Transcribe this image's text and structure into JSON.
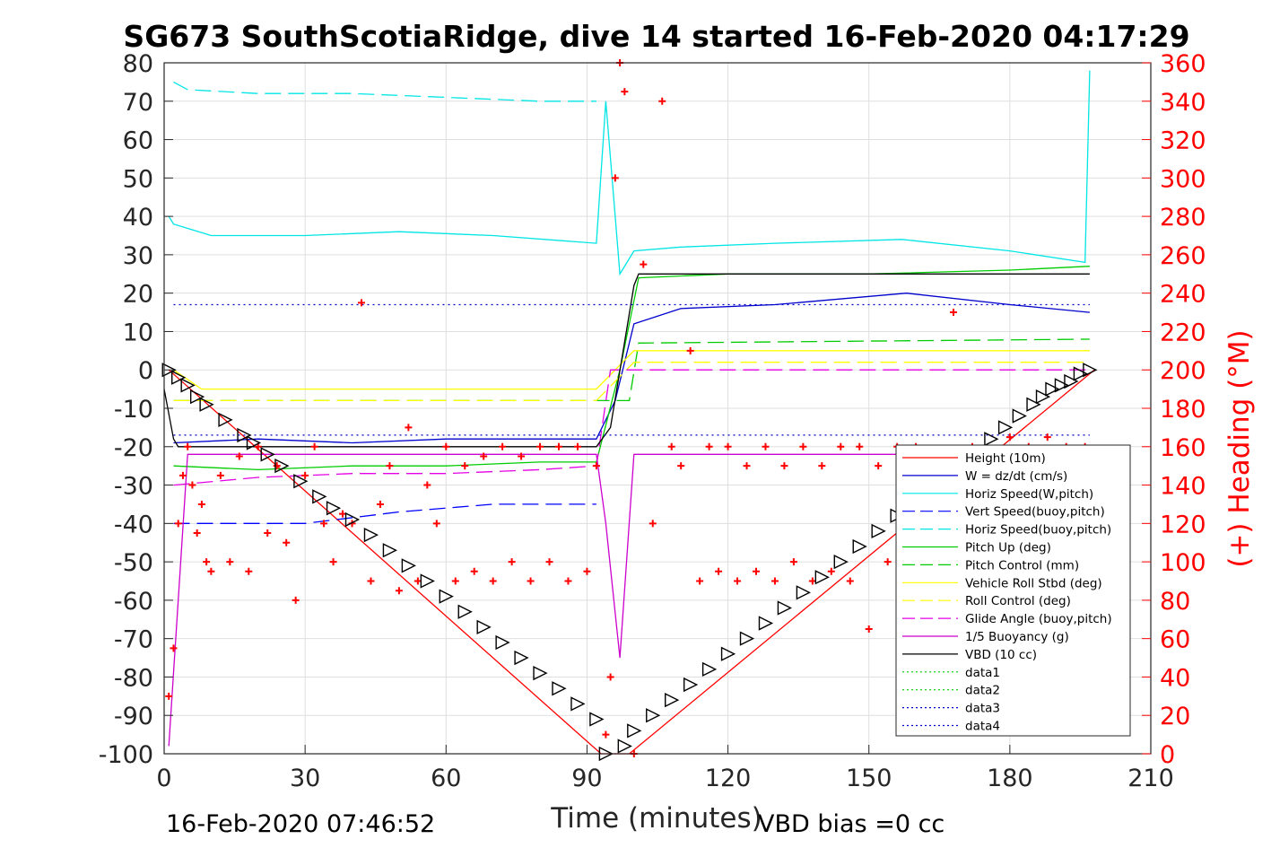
{
  "chart_data": {
    "type": "line",
    "title": "SG673 SouthScotiaRidge, dive 14 started 16-Feb-2020 04:17:29",
    "xlabel": "Time (minutes)",
    "ylabel_right": "(+) Heading (°M)",
    "footer_left": "16-Feb-2020 07:46:52",
    "footer_right": "VBD bias =0 cc",
    "xlim": [
      0,
      210
    ],
    "ylim": [
      -100,
      80
    ],
    "ylim_right": [
      0,
      360
    ],
    "x_ticks": [
      "0",
      "30",
      "60",
      "90",
      "120",
      "150",
      "180",
      "210"
    ],
    "y_ticks_left": [
      "80",
      "70",
      "60",
      "50",
      "40",
      "30",
      "20",
      "10",
      "0",
      "-10",
      "-20",
      "-30",
      "-40",
      "-50",
      "-60",
      "-70",
      "-80",
      "-90",
      "-100"
    ],
    "y_ticks_right": [
      "360",
      "340",
      "320",
      "300",
      "280",
      "260",
      "240",
      "220",
      "200",
      "180",
      "160",
      "140",
      "120",
      "100",
      "80",
      "60",
      "40",
      "20",
      "0"
    ],
    "grid": true,
    "legend_position": "lower-right",
    "series": [
      {
        "name": "Height (10m)",
        "color": "#ff0000",
        "style": "solid",
        "x": [
          1,
          93,
          95,
          99,
          198
        ],
        "y": [
          0,
          -100,
          -100,
          -100,
          0
        ]
      },
      {
        "name": "W = dz/dt (cm/s)",
        "color": "#0000cc",
        "style": "solid",
        "x": [
          2,
          20,
          40,
          60,
          80,
          92,
          96,
          100,
          110,
          130,
          158,
          180,
          197
        ],
        "y": [
          -19,
          -18,
          -19,
          -18,
          -18,
          -18,
          -8,
          12,
          16,
          17,
          20,
          17,
          15
        ]
      },
      {
        "name": "Horiz Speed(W,pitch)",
        "color": "#00e5e5",
        "style": "solid",
        "x": [
          1,
          2,
          10,
          30,
          50,
          70,
          92,
          94,
          97,
          100,
          110,
          130,
          157,
          180,
          196,
          197
        ],
        "y": [
          40,
          38,
          35,
          35,
          36,
          35,
          33,
          70,
          25,
          31,
          32,
          33,
          34,
          31,
          28,
          78
        ]
      },
      {
        "name": "Vert Speed(buoy,pitch)",
        "color": "#0000ff",
        "style": "dashed",
        "x": [
          2,
          10,
          30,
          50,
          70,
          92
        ],
        "y": [
          -40,
          -40,
          -40,
          -37,
          -35,
          -35
        ]
      },
      {
        "name": "Horiz Speed(buoy,pitch)",
        "color": "#00e5e5",
        "style": "dashed",
        "x": [
          2,
          5,
          20,
          40,
          60,
          80,
          92
        ],
        "y": [
          75,
          73,
          72,
          72,
          71,
          70,
          70
        ]
      },
      {
        "name": "Pitch Up (deg)",
        "color": "#00cc00",
        "style": "solid",
        "x": [
          2,
          20,
          40,
          60,
          80,
          92,
          97,
          101,
          120,
          150,
          180,
          197
        ],
        "y": [
          -25,
          -26,
          -25,
          -25,
          -24,
          -24,
          0,
          24,
          25,
          25,
          26,
          27
        ]
      },
      {
        "name": "Pitch Control (mm)",
        "color": "#00cc00",
        "style": "dashed",
        "x": [
          2,
          92,
          99,
          101,
          197
        ],
        "y": [
          -8,
          -8,
          -8,
          7,
          8
        ]
      },
      {
        "name": "Vehicle Roll Stbd (deg)",
        "color": "#ffff00",
        "style": "solid",
        "x": [
          2,
          8,
          30,
          60,
          92,
          100,
          110,
          150,
          197
        ],
        "y": [
          0,
          -5,
          -5,
          -5,
          -5,
          5,
          5,
          5,
          5
        ]
      },
      {
        "name": "Roll Control (deg)",
        "color": "#ffff00",
        "style": "dashed",
        "x": [
          2,
          92,
          100,
          197
        ],
        "y": [
          -8,
          -8,
          2,
          2
        ]
      },
      {
        "name": "Glide Angle (buoy,pitch)",
        "color": "#e500e5",
        "style": "dashed",
        "x": [
          2,
          20,
          40,
          60,
          80,
          92,
          95,
          99,
          197
        ],
        "y": [
          -30,
          -28,
          -27,
          -27,
          -26,
          -25,
          0,
          0,
          0
        ]
      },
      {
        "name": "1/5 Buoyancy (g)",
        "color": "#cc00cc",
        "style": "solid",
        "x": [
          1,
          5,
          92,
          94,
          97,
          100,
          197
        ],
        "y": [
          -98,
          -22,
          -22,
          -40,
          -75,
          -22,
          -22
        ]
      },
      {
        "name": "VBD (10 cc)",
        "color": "#000000",
        "style": "solid",
        "x": [
          0,
          2,
          3,
          92,
          95,
          100,
          101,
          197
        ],
        "y": [
          -5,
          -18,
          -20,
          -20,
          -15,
          22,
          25,
          25
        ]
      },
      {
        "name": "data1",
        "color": "#00cc00",
        "style": "dotted",
        "x": [],
        "y": []
      },
      {
        "name": "data2",
        "color": "#00cc00",
        "style": "dotted",
        "x": [],
        "y": []
      },
      {
        "name": "data3",
        "color": "#0000cc",
        "style": "dotted",
        "x": [
          2,
          197
        ],
        "y": [
          17,
          17
        ]
      },
      {
        "name": "data4",
        "color": "#0000cc",
        "style": "dotted",
        "x": [
          2,
          197
        ],
        "y": [
          -17,
          -17
        ]
      }
    ],
    "heading_series": {
      "axis": "right",
      "color": "#ff0000",
      "marker": "+",
      "x": [
        1,
        2,
        3,
        4,
        5,
        6,
        7,
        8,
        9,
        10,
        12,
        14,
        16,
        18,
        20,
        22,
        24,
        26,
        28,
        30,
        32,
        34,
        36,
        38,
        40,
        42,
        44,
        46,
        48,
        50,
        52,
        54,
        56,
        58,
        60,
        62,
        64,
        66,
        68,
        70,
        72,
        74,
        76,
        78,
        80,
        82,
        84,
        86,
        88,
        90,
        92,
        94,
        95,
        96,
        97,
        98,
        100,
        102,
        104,
        106,
        108,
        110,
        112,
        114,
        116,
        118,
        120,
        122,
        124,
        126,
        128,
        130,
        132,
        134,
        136,
        138,
        140,
        142,
        144,
        146,
        148,
        150,
        152,
        154,
        156,
        158,
        160,
        162,
        164,
        166,
        168,
        170,
        172,
        174,
        176,
        178,
        180,
        182,
        184,
        186,
        188,
        190,
        192,
        194,
        196
      ],
      "y": [
        30,
        55,
        120,
        145,
        160,
        140,
        115,
        130,
        100,
        95,
        145,
        100,
        155,
        95,
        160,
        115,
        150,
        110,
        80,
        145,
        160,
        120,
        100,
        125,
        120,
        235,
        90,
        130,
        150,
        85,
        170,
        90,
        140,
        120,
        160,
        90,
        150,
        95,
        155,
        90,
        160,
        100,
        155,
        90,
        160,
        100,
        160,
        90,
        160,
        95,
        150,
        10,
        40,
        300,
        360,
        345,
        0,
        255,
        120,
        340,
        160,
        150,
        210,
        90,
        160,
        95,
        160,
        90,
        150,
        95,
        160,
        90,
        150,
        100,
        160,
        90,
        150,
        95,
        160,
        90,
        160,
        65,
        150,
        100,
        160,
        90,
        160,
        100,
        155,
        125,
        230,
        100,
        160,
        120,
        155,
        110,
        165,
        120,
        160,
        130,
        165,
        140,
        160,
        150,
        160
      ]
    },
    "triangle_markers": {
      "x": [
        1,
        3,
        5,
        7,
        9,
        13,
        17,
        19,
        22,
        25,
        29,
        33,
        36,
        40,
        44,
        48,
        52,
        56,
        60,
        64,
        68,
        72,
        76,
        80,
        84,
        88,
        92,
        94,
        98,
        100,
        104,
        108,
        112,
        116,
        120,
        124,
        128,
        132,
        136,
        140,
        144,
        148,
        152,
        156,
        160,
        164,
        168,
        172,
        176,
        179,
        182,
        185,
        187,
        189,
        191,
        193,
        195,
        197
      ],
      "y": [
        0,
        -2,
        -4,
        -7,
        -9,
        -13,
        -17,
        -19,
        -22,
        -25,
        -29,
        -33,
        -36,
        -39,
        -43,
        -47,
        -51,
        -55,
        -59,
        -63,
        -67,
        -71,
        -75,
        -79,
        -83,
        -87,
        -91,
        -100,
        -98,
        -94,
        -90,
        -86,
        -82,
        -78,
        -74,
        -70,
        -66,
        -62,
        -58,
        -54,
        -50,
        -46,
        -42,
        -38,
        -34,
        -30,
        -26,
        -22,
        -18,
        -15,
        -12,
        -9,
        -7,
        -5,
        -4,
        -3,
        -1,
        0
      ]
    }
  }
}
